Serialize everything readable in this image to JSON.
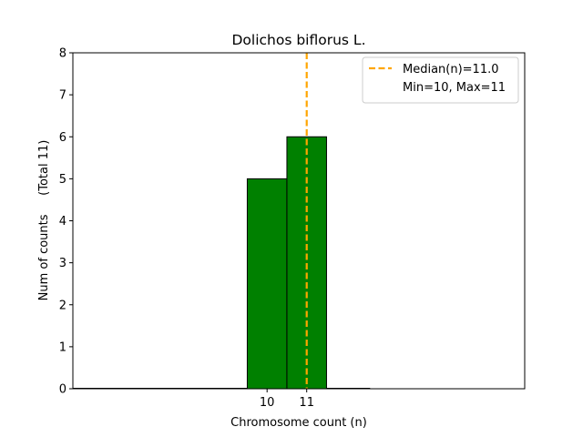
{
  "chart_data": {
    "type": "bar",
    "title": "Dolichos biflorus L.",
    "xlabel": "Chromosome count (n)",
    "ylabel": "Num of counts     (Total 11)",
    "x_ticks": [
      10,
      11
    ],
    "y_ticks": [
      0,
      1,
      2,
      3,
      4,
      5,
      6,
      7,
      8
    ],
    "ylim": [
      0,
      8
    ],
    "xlim": [
      5.1,
      16.5
    ],
    "bars": [
      {
        "x": 10,
        "value": 5
      },
      {
        "x": 11,
        "value": 6
      }
    ],
    "bar_color": "#008000",
    "bar_edge_color": "#000000",
    "baseline_extent": [
      5.1,
      12.6
    ],
    "median": 11.0,
    "median_color": "#FFA500",
    "legend": {
      "placement": "upper right",
      "entries": [
        "Median(n)=11.0",
        "Min=10, Max=11"
      ]
    }
  }
}
